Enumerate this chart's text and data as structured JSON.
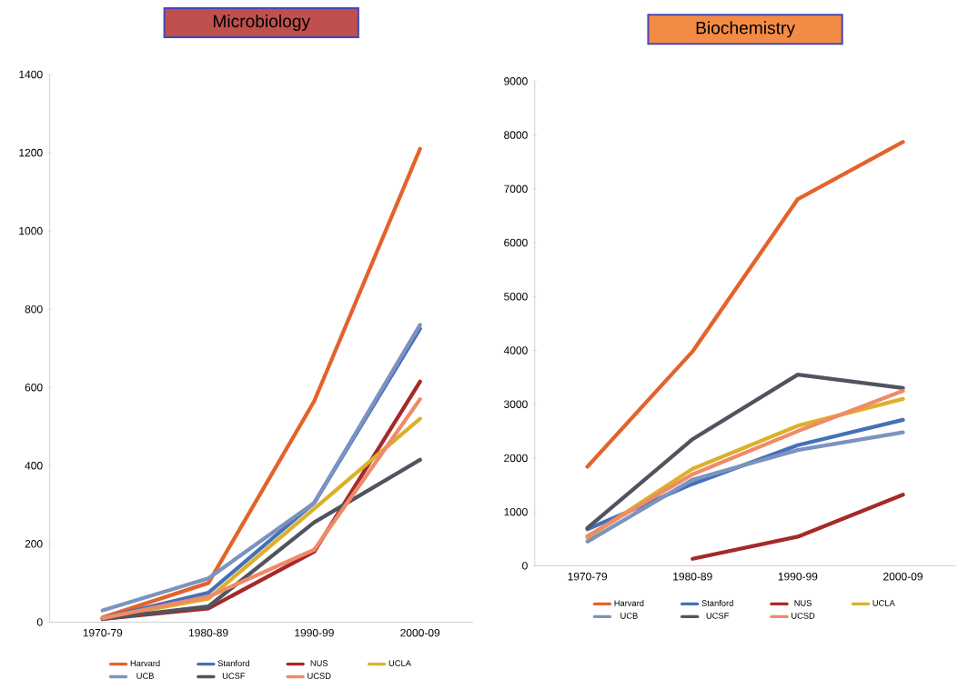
{
  "chart_data": [
    {
      "type": "line",
      "title": "Microbiology",
      "categories": [
        "1970-79",
        "1980-89",
        "1990-99",
        "2000-09"
      ],
      "ylim": [
        0,
        1400
      ],
      "yticks": [
        0,
        200,
        400,
        600,
        800,
        1000,
        1200,
        1400
      ],
      "legend": "bottom",
      "series": [
        {
          "name": "Harvard",
          "color": "#e3632a",
          "values": [
            12,
            100,
            565,
            1210
          ]
        },
        {
          "name": "Stanford",
          "color": "#4470b8",
          "values": [
            10,
            75,
            305,
            750
          ]
        },
        {
          "name": "NUS",
          "color": "#a42a2a",
          "values": [
            8,
            35,
            180,
            615
          ]
        },
        {
          "name": "UCLA",
          "color": "#dcb02a",
          "values": [
            10,
            60,
            290,
            520
          ]
        },
        {
          "name": "UCB",
          "color": "#7c93bf",
          "values": [
            30,
            112,
            305,
            760
          ]
        },
        {
          "name": "UCSF",
          "color": "#50545e",
          "values": [
            8,
            40,
            255,
            415
          ]
        },
        {
          "name": "UCSD",
          "color": "#f08a68",
          "values": [
            10,
            65,
            185,
            570
          ]
        }
      ]
    },
    {
      "type": "line",
      "title": "Biochemistry",
      "categories": [
        "1970-79",
        "1980-89",
        "1990-99",
        "2000-09"
      ],
      "ylim": [
        0,
        9000
      ],
      "yticks": [
        0,
        1000,
        2000,
        3000,
        4000,
        5000,
        6000,
        7000,
        8000,
        9000
      ],
      "legend": "bottom",
      "series": [
        {
          "name": "Harvard",
          "color": "#e3632a",
          "values": [
            1840,
            3980,
            6810,
            7870
          ]
        },
        {
          "name": "Stanford",
          "color": "#4470b8",
          "values": [
            680,
            1520,
            2240,
            2710
          ]
        },
        {
          "name": "NUS",
          "color": "#a42a2a",
          "values": [
            null,
            130,
            540,
            1320
          ]
        },
        {
          "name": "UCLA",
          "color": "#dcb02a",
          "values": [
            520,
            1800,
            2600,
            3100
          ]
        },
        {
          "name": "UCB",
          "color": "#7c93bf",
          "values": [
            450,
            1600,
            2150,
            2480
          ]
        },
        {
          "name": "UCSF",
          "color": "#50545e",
          "values": [
            700,
            2350,
            3550,
            3300
          ]
        },
        {
          "name": "UCSD",
          "color": "#f08a68",
          "values": [
            550,
            1700,
            2500,
            3250
          ]
        }
      ]
    }
  ]
}
